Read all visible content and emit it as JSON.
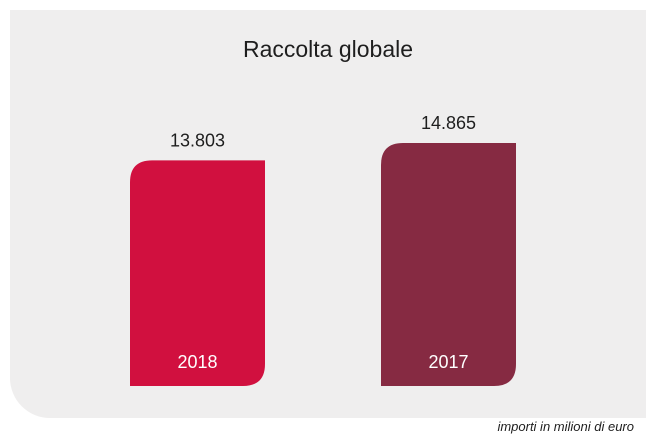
{
  "chart_data": {
    "type": "bar",
    "title": "Raccolta globale",
    "categories": [
      "2018",
      "2017"
    ],
    "values": [
      13803,
      14865
    ],
    "value_labels": [
      "13.803",
      "14.865"
    ],
    "colors": [
      "#d1103f",
      "#862a42"
    ],
    "ylim": [
      0,
      14865
    ],
    "grid": false,
    "legend": "none",
    "note": "importi in milioni di euro"
  }
}
